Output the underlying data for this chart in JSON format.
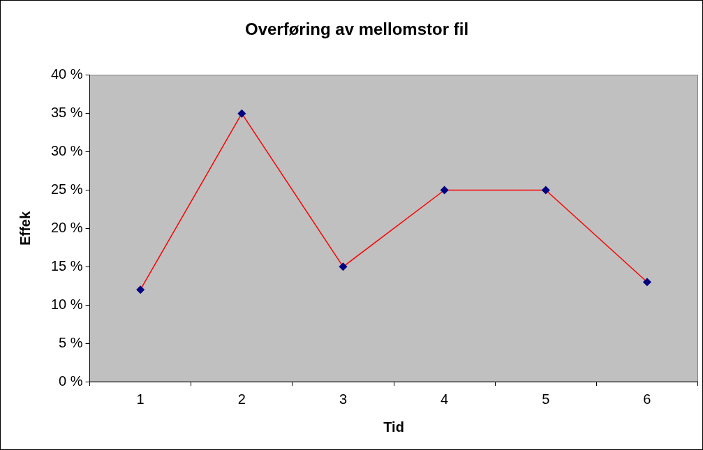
{
  "chart_data": {
    "type": "line",
    "title": "Overføring av mellomstor fil",
    "xlabel": "Tid",
    "ylabel": "Effek",
    "categories": [
      "1",
      "2",
      "3",
      "4",
      "5",
      "6"
    ],
    "series": [
      {
        "color": "#ff0000",
        "colors": [
          "#000080",
          "#000080",
          "#000080",
          "#000080",
          "#000080",
          "#000080"
        ],
        "values": [
          12,
          35,
          15,
          25,
          25,
          13
        ]
      }
    ],
    "ylim": [
      0,
      40
    ],
    "yticks": [
      {
        "value": 0,
        "label": "0 %"
      },
      {
        "value": 5,
        "label": "5 %"
      },
      {
        "value": 10,
        "label": "10 %"
      },
      {
        "value": 15,
        "label": "15 %"
      },
      {
        "value": 20,
        "label": "20 %"
      },
      {
        "value": 25,
        "label": "25 %"
      },
      {
        "value": 30,
        "label": "30 %"
      },
      {
        "value": 35,
        "label": "35 %"
      },
      {
        "value": 40,
        "label": "40 %"
      }
    ],
    "grid": false,
    "legend": false,
    "marker": "diamond",
    "line_style": "solid"
  }
}
